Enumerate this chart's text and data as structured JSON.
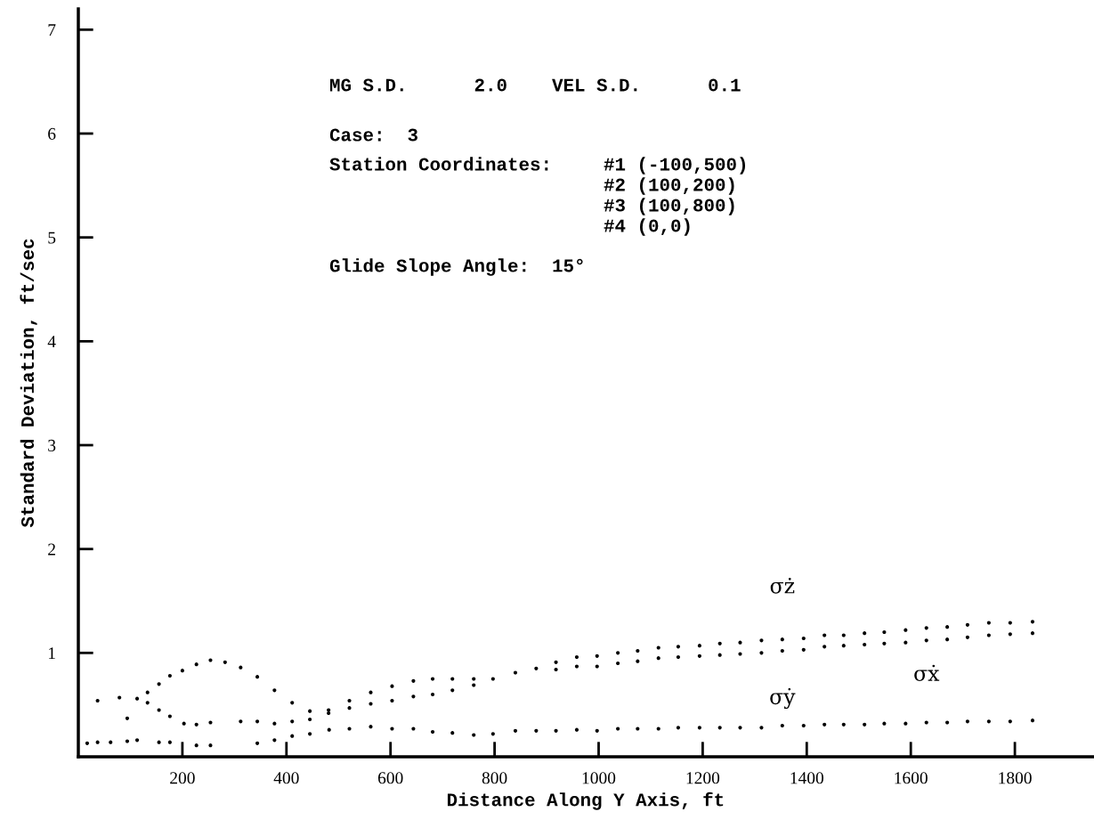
{
  "chart_data": {
    "type": "scatter",
    "xlabel": "Distance Along Y Axis, ft",
    "ylabel": "Standard Deviation, ft/sec",
    "xlim": [
      0,
      1950
    ],
    "ylim": [
      0,
      7.2
    ],
    "xticks": [
      200,
      400,
      600,
      800,
      1000,
      1200,
      1400,
      1600,
      1800
    ],
    "yticks": [
      1,
      2,
      3,
      4,
      5,
      6,
      7
    ],
    "marker": "circle",
    "grid": false,
    "legend": false,
    "series": [
      {
        "name": "σż",
        "color": "#000000",
        "x": [
          94,
          133,
          155,
          176,
          200,
          227,
          254,
          282,
          312,
          344,
          377,
          411,
          445,
          481,
          521,
          562,
          603,
          644,
          681,
          719,
          760,
          797,
          840,
          880,
          918,
          958,
          997,
          1037,
          1075,
          1115,
          1153,
          1194,
          1233,
          1272,
          1313,
          1353,
          1394,
          1434,
          1471,
          1511,
          1549,
          1590,
          1630,
          1670,
          1709,
          1750,
          1791,
          1834
        ],
        "values": [
          0.37,
          0.62,
          0.7,
          0.78,
          0.83,
          0.89,
          0.93,
          0.91,
          0.86,
          0.77,
          0.64,
          0.52,
          0.44,
          0.45,
          0.54,
          0.62,
          0.68,
          0.73,
          0.75,
          0.75,
          0.75,
          0.75,
          0.81,
          0.85,
          0.91,
          0.96,
          0.97,
          1.0,
          1.02,
          1.05,
          1.06,
          1.07,
          1.09,
          1.1,
          1.12,
          1.13,
          1.14,
          1.17,
          1.17,
          1.19,
          1.2,
          1.22,
          1.24,
          1.25,
          1.27,
          1.29,
          1.29,
          1.3
        ]
      },
      {
        "name": "σẋ",
        "color": "#000000",
        "x": [
          37,
          79,
          113,
          133,
          155,
          176,
          203,
          227,
          254,
          312,
          344,
          377,
          411,
          445,
          481,
          521,
          562,
          603,
          644,
          681,
          719,
          760,
          918,
          958,
          997,
          1037,
          1075,
          1115,
          1153,
          1194,
          1233,
          1272,
          1313,
          1353,
          1394,
          1434,
          1471,
          1511,
          1549,
          1590,
          1630,
          1670,
          1709,
          1750,
          1791,
          1834
        ],
        "values": [
          0.54,
          0.57,
          0.56,
          0.52,
          0.45,
          0.39,
          0.32,
          0.31,
          0.33,
          0.34,
          0.34,
          0.32,
          0.34,
          0.36,
          0.42,
          0.47,
          0.51,
          0.54,
          0.58,
          0.6,
          0.64,
          0.69,
          0.84,
          0.87,
          0.87,
          0.9,
          0.92,
          0.95,
          0.96,
          0.97,
          0.98,
          0.99,
          1.0,
          1.02,
          1.03,
          1.06,
          1.07,
          1.08,
          1.09,
          1.1,
          1.12,
          1.13,
          1.15,
          1.17,
          1.18,
          1.19
        ]
      },
      {
        "name": "σẏ",
        "color": "#000000",
        "x": [
          17,
          37,
          62,
          94,
          113,
          155,
          176,
          200,
          227,
          254,
          344,
          377,
          411,
          445,
          482,
          521,
          562,
          603,
          644,
          681,
          719,
          760,
          797,
          840,
          880,
          918,
          958,
          997,
          1037,
          1075,
          1115,
          1153,
          1194,
          1233,
          1272,
          1313,
          1353,
          1394,
          1434,
          1471,
          1511,
          1549,
          1590,
          1630,
          1670,
          1709,
          1750,
          1791,
          1834
        ],
        "values": [
          0.13,
          0.14,
          0.14,
          0.15,
          0.16,
          0.14,
          0.14,
          null,
          0.11,
          0.11,
          0.13,
          0.16,
          0.2,
          0.22,
          0.26,
          0.27,
          0.29,
          0.27,
          0.27,
          0.24,
          0.23,
          0.21,
          0.22,
          0.25,
          0.25,
          0.25,
          0.26,
          0.25,
          0.27,
          0.27,
          0.27,
          0.28,
          0.28,
          0.28,
          0.28,
          0.28,
          0.3,
          0.3,
          0.31,
          0.31,
          0.31,
          0.32,
          0.32,
          0.33,
          0.33,
          0.34,
          0.34,
          0.34,
          0.35
        ]
      }
    ],
    "annotations": [
      "MG S.D.      2.0    VEL S.D.      0.1",
      "Case:  3",
      "Station Coordinates:",
      "#1 (-100,500)",
      "#2 (100,200)",
      "#3 (100,800)",
      "#4 (0,0)",
      "Glide Slope Angle:  15°"
    ]
  }
}
